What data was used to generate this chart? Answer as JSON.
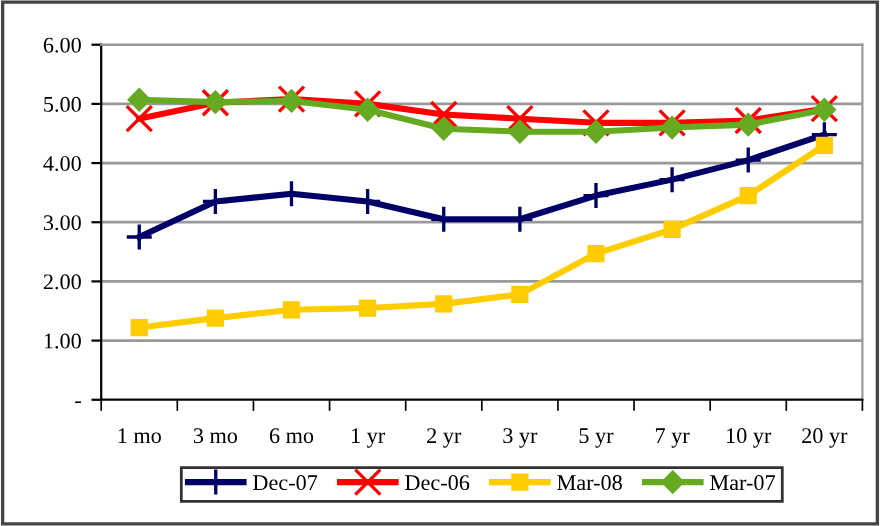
{
  "chart_data": {
    "type": "line",
    "categories": [
      "1 mo",
      "3 mo",
      "6 mo",
      "1 yr",
      "2 yr",
      "3 yr",
      "5 yr",
      "7 yr",
      "10 yr",
      "20 yr"
    ],
    "series": [
      {
        "name": "Dec-07",
        "color": "#000066",
        "marker": "cross",
        "values": [
          2.75,
          3.35,
          3.48,
          3.35,
          3.05,
          3.05,
          3.45,
          3.72,
          4.05,
          4.48
        ]
      },
      {
        "name": "Dec-06",
        "color": "#ff0000",
        "marker": "x",
        "values": [
          4.75,
          5.02,
          5.08,
          5.0,
          4.82,
          4.75,
          4.68,
          4.68,
          4.72,
          4.92
        ]
      },
      {
        "name": "Mar-08",
        "color": "#ffcc00",
        "marker": "square",
        "values": [
          1.22,
          1.38,
          1.52,
          1.55,
          1.62,
          1.78,
          2.47,
          2.88,
          3.45,
          4.3
        ]
      },
      {
        "name": "Mar-07",
        "color": "#66aa22",
        "marker": "diamond",
        "values": [
          5.07,
          5.03,
          5.05,
          4.9,
          4.58,
          4.53,
          4.53,
          4.6,
          4.65,
          4.9
        ]
      }
    ],
    "ylim": [
      0,
      6
    ],
    "yticks": [
      {
        "value": 0,
        "label": "-"
      },
      {
        "value": 1,
        "label": "1.00"
      },
      {
        "value": 2,
        "label": "2.00"
      },
      {
        "value": 3,
        "label": "3.00"
      },
      {
        "value": 4,
        "label": "4.00"
      },
      {
        "value": 5,
        "label": "5.00"
      },
      {
        "value": 6,
        "label": "6.00"
      }
    ],
    "grid": "y",
    "legend": "bottom",
    "line_style": "solid"
  }
}
